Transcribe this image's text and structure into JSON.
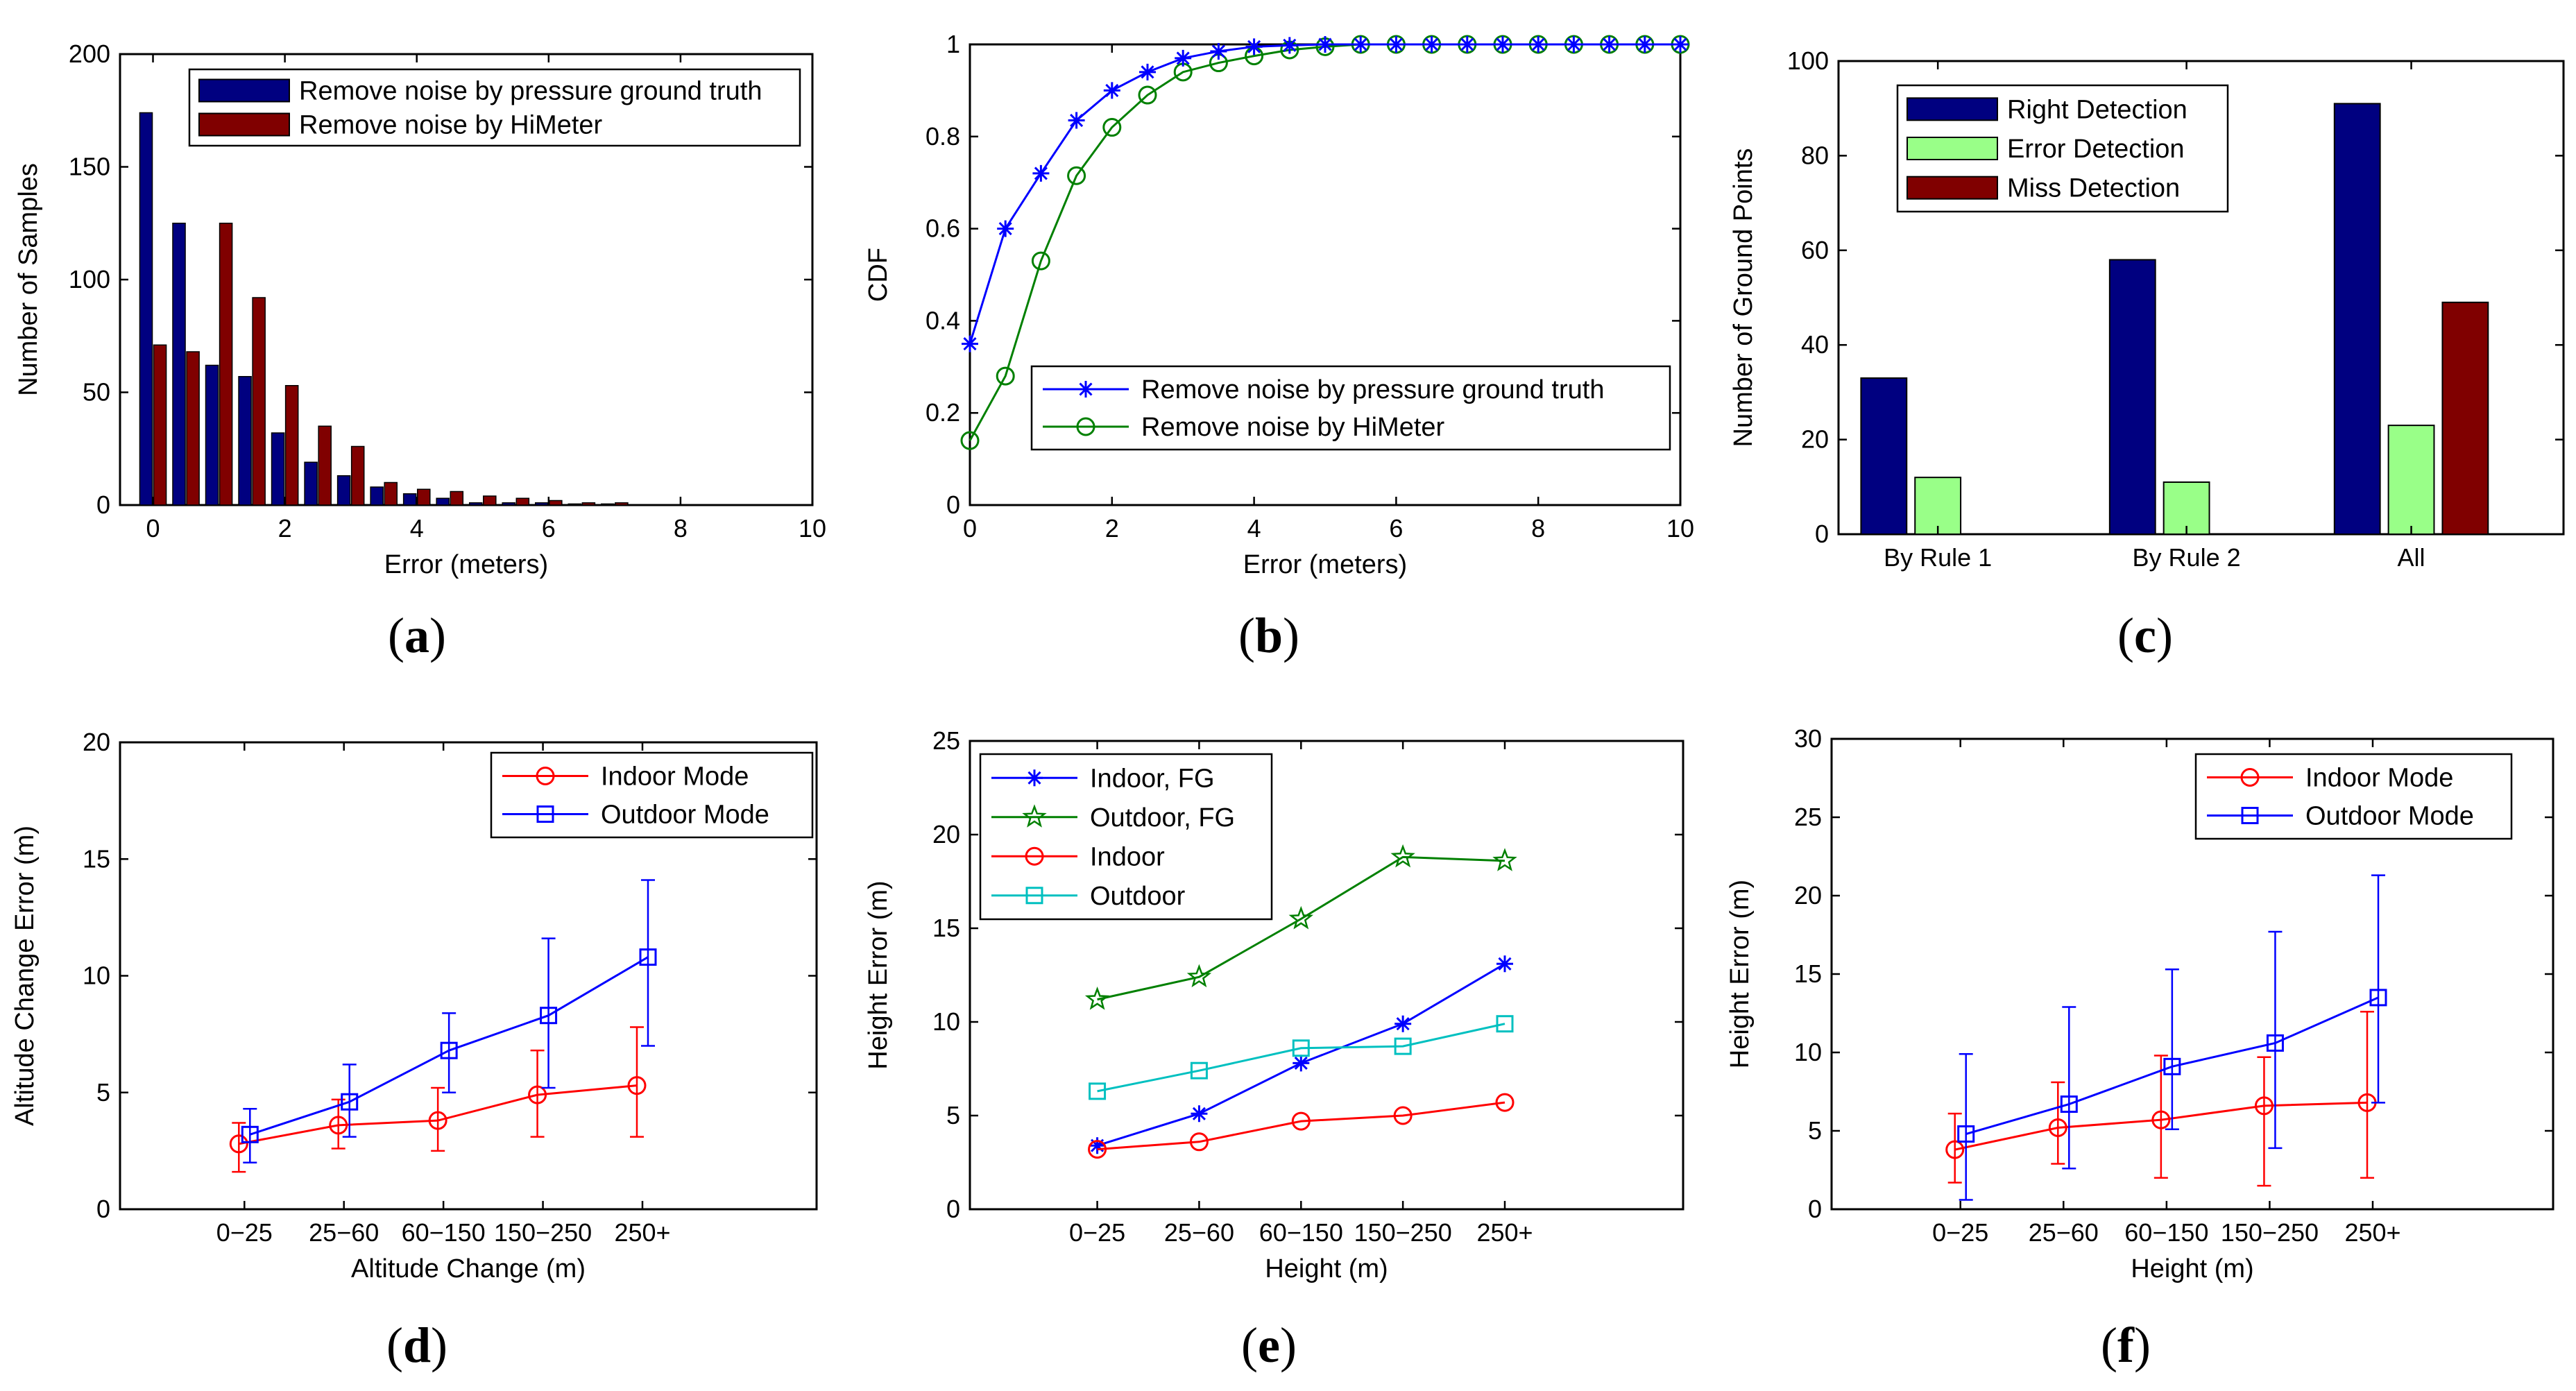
{
  "chart_data": [
    {
      "id": "a",
      "panel_label": "a",
      "type": "bar",
      "title": "",
      "xlabel": "Error (meters)",
      "ylabel": "Number of Samples",
      "xlim": [
        -0.5,
        10
      ],
      "ylim": [
        0,
        200
      ],
      "xticks": [
        0,
        2,
        4,
        6,
        8,
        10
      ],
      "yticks": [
        0,
        50,
        100,
        150,
        200
      ],
      "legend_position": "top-right",
      "x": [
        0,
        0.5,
        1,
        1.5,
        2,
        2.5,
        3,
        3.5,
        4,
        4.5,
        5,
        5.5,
        6,
        6.5,
        7
      ],
      "series": [
        {
          "name": "Remove noise by pressure ground truth",
          "color": "#000080",
          "values": [
            174,
            125,
            62,
            57,
            32,
            19,
            13,
            8,
            5,
            3,
            1,
            1,
            1,
            0.5,
            0.5
          ]
        },
        {
          "name": "Remove noise by HiMeter",
          "color": "#800000",
          "values": [
            71,
            68,
            125,
            92,
            53,
            35,
            26,
            10,
            7,
            6,
            4,
            3,
            2,
            1,
            1
          ]
        }
      ]
    },
    {
      "id": "b",
      "panel_label": "b",
      "type": "line",
      "title": "",
      "xlabel": "Error (meters)",
      "ylabel": "CDF",
      "xlim": [
        0,
        10
      ],
      "ylim": [
        0,
        1
      ],
      "xticks": [
        0,
        2,
        4,
        6,
        8,
        10
      ],
      "yticks": [
        0,
        0.2,
        0.4,
        0.6,
        0.8,
        1
      ],
      "legend_position": "bottom-right",
      "x": [
        0,
        0.5,
        1,
        1.5,
        2,
        2.5,
        3,
        3.5,
        4,
        4.5,
        5,
        5.5,
        6,
        6.5,
        7,
        7.5,
        8,
        8.5,
        9,
        9.5,
        10
      ],
      "series": [
        {
          "name": "Remove noise by pressure ground truth",
          "color": "#0000ff",
          "marker": "star",
          "values": [
            0.35,
            0.6,
            0.72,
            0.835,
            0.9,
            0.94,
            0.97,
            0.985,
            0.995,
            0.998,
            1,
            1,
            1,
            1,
            1,
            1,
            1,
            1,
            1,
            1,
            1
          ]
        },
        {
          "name": "Remove noise by HiMeter",
          "color": "#008000",
          "marker": "circle",
          "values": [
            0.14,
            0.28,
            0.53,
            0.715,
            0.82,
            0.89,
            0.94,
            0.96,
            0.975,
            0.988,
            0.995,
            1,
            1,
            1,
            1,
            1,
            1,
            1,
            1,
            1,
            1
          ]
        }
      ]
    },
    {
      "id": "c",
      "panel_label": "c",
      "type": "bar",
      "title": "",
      "xlabel": "",
      "ylabel": "Number of Ground Points",
      "ylim": [
        0,
        100
      ],
      "yticks": [
        0,
        20,
        40,
        60,
        80,
        100
      ],
      "legend_position": "top-left",
      "categories": [
        "By Rule 1",
        "By Rule 2",
        "All"
      ],
      "series": [
        {
          "name": "Right Detection",
          "color": "#000080",
          "values": [
            33,
            58,
            91
          ]
        },
        {
          "name": "Error Detection",
          "color": "#99ff88",
          "values": [
            12,
            11,
            23
          ]
        },
        {
          "name": "Miss Detection",
          "color": "#800000",
          "values": [
            0,
            0,
            49
          ]
        }
      ]
    },
    {
      "id": "d",
      "panel_label": "d",
      "type": "line",
      "title": "",
      "xlabel": "Altitude Change (m)",
      "ylabel": "Altitude Change Error (m)",
      "ylim": [
        0,
        20
      ],
      "yticks": [
        0,
        5,
        10,
        15,
        20
      ],
      "legend_position": "top-right",
      "categories": [
        "0−25",
        "25−60",
        "60−150",
        "150−250",
        "250+"
      ],
      "series": [
        {
          "name": "Indoor Mode",
          "color": "#ff0000",
          "marker": "circle",
          "values": [
            2.8,
            3.6,
            3.8,
            4.9,
            5.3
          ],
          "err_low": [
            1.6,
            2.6,
            2.5,
            3.1,
            3.1
          ],
          "err_high": [
            3.7,
            4.7,
            5.2,
            6.8,
            7.8
          ]
        },
        {
          "name": "Outdoor Mode",
          "color": "#0000ff",
          "marker": "square",
          "values": [
            3.2,
            4.6,
            6.8,
            8.3,
            10.8
          ],
          "err_low": [
            2.0,
            3.1,
            5.0,
            5.2,
            7.0
          ],
          "err_high": [
            4.3,
            6.2,
            8.4,
            11.6,
            14.1
          ]
        }
      ]
    },
    {
      "id": "e",
      "panel_label": "e",
      "type": "line",
      "title": "",
      "xlabel": "Height (m)",
      "ylabel": "Height Error (m)",
      "ylim": [
        0,
        25
      ],
      "yticks": [
        0,
        5,
        10,
        15,
        20,
        25
      ],
      "legend_position": "top-left",
      "categories": [
        "0−25",
        "25−60",
        "60−150",
        "150−250",
        "250+"
      ],
      "series": [
        {
          "name": "Indoor, FG",
          "color": "#0000ff",
          "marker": "star",
          "values": [
            3.4,
            5.1,
            7.8,
            9.9,
            13.1
          ]
        },
        {
          "name": "Outdoor, FG",
          "color": "#008000",
          "marker": "pentagram",
          "values": [
            11.2,
            12.4,
            15.5,
            18.8,
            18.6
          ]
        },
        {
          "name": "Indoor",
          "color": "#ff0000",
          "marker": "circle",
          "values": [
            3.2,
            3.6,
            4.7,
            5.0,
            5.7
          ]
        },
        {
          "name": "Outdoor",
          "color": "#00c0c0",
          "marker": "square",
          "values": [
            6.3,
            7.4,
            8.6,
            8.7,
            9.9
          ]
        }
      ]
    },
    {
      "id": "f",
      "panel_label": "f",
      "type": "line",
      "title": "",
      "xlabel": "Height (m)",
      "ylabel": "Height Error (m)",
      "ylim": [
        0,
        30
      ],
      "yticks": [
        0,
        5,
        10,
        15,
        20,
        25,
        30
      ],
      "legend_position": "top-right",
      "categories": [
        "0−25",
        "25−60",
        "60−150",
        "150−250",
        "250+"
      ],
      "series": [
        {
          "name": "Indoor Mode",
          "color": "#ff0000",
          "marker": "circle",
          "values": [
            3.8,
            5.2,
            5.7,
            6.6,
            6.8
          ],
          "err_low": [
            1.7,
            2.9,
            2.0,
            1.5,
            2.0
          ],
          "err_high": [
            6.1,
            8.1,
            9.8,
            9.7,
            12.6
          ]
        },
        {
          "name": "Outdoor Mode",
          "color": "#0000ff",
          "marker": "square",
          "values": [
            4.8,
            6.7,
            9.1,
            10.6,
            13.5
          ],
          "err_low": [
            0.6,
            2.6,
            5.1,
            3.9,
            6.8
          ],
          "err_high": [
            9.9,
            12.9,
            15.3,
            17.7,
            21.3
          ]
        }
      ]
    }
  ]
}
